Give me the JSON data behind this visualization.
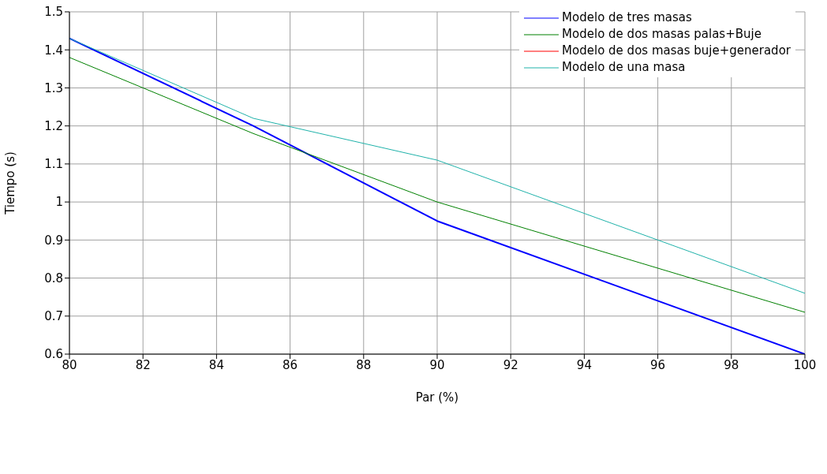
{
  "chart_data": {
    "type": "line",
    "xlabel": "Par (%)",
    "ylabel": "Tiempo (s)",
    "x": [
      80,
      85,
      90,
      100
    ],
    "series": [
      {
        "name": "Modelo de tres masas",
        "color": "#0000ff",
        "values": [
          1.43,
          1.2,
          0.95,
          0.6
        ]
      },
      {
        "name": "Modelo de dos masas palas+Buje",
        "color": "#008000",
        "values": [
          1.38,
          1.18,
          1.0,
          0.71
        ]
      },
      {
        "name": "Modelo de dos masas buje+generador",
        "color": "#ff0000",
        "values": [
          null,
          null,
          null,
          null
        ]
      },
      {
        "name": "Modelo de una masa",
        "color": "#20b2aa",
        "values": [
          1.43,
          1.22,
          1.11,
          0.76
        ]
      }
    ],
    "xlim": [
      80,
      100
    ],
    "xticks": [
      80,
      82,
      84,
      86,
      88,
      90,
      92,
      94,
      96,
      98,
      100
    ],
    "ylim": [
      0.6,
      1.5
    ],
    "yticks": [
      0.6,
      0.7,
      0.8,
      0.9,
      1,
      1.1,
      1.2,
      1.3,
      1.4,
      1.5
    ],
    "grid": true,
    "legend": "top right",
    "marker": "none",
    "line_style": "solid"
  }
}
